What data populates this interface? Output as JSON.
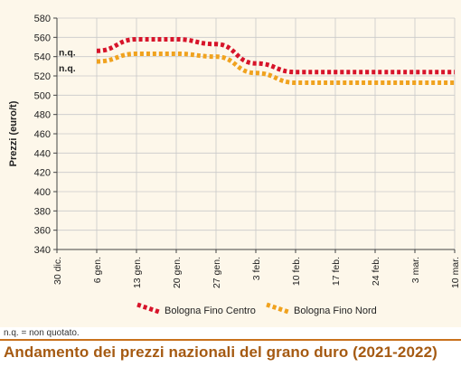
{
  "chart_data": {
    "type": "line",
    "title": "Andamento dei prezzi nazionali del grano duro (2021-2022)",
    "ylabel": "Prezzi (euro/t)",
    "ylim": [
      340,
      580
    ],
    "yticks": [
      340,
      360,
      380,
      400,
      420,
      440,
      460,
      480,
      500,
      520,
      540,
      560,
      580
    ],
    "categories": [
      "30 dic.",
      "6 gen.",
      "13 gen.",
      "20 gen.",
      "27 gen.",
      "3 feb.",
      "10 feb.",
      "17 feb.",
      "24 feb.",
      "3 mar.",
      "10 mar."
    ],
    "grid": true,
    "legend_position": "bottom",
    "series": [
      {
        "name": "Bologna Fino Centro",
        "color": "#d7142a",
        "values": [
          null,
          546,
          558,
          558,
          553,
          533,
          524,
          524,
          524,
          524,
          524
        ],
        "start_label": "n.q."
      },
      {
        "name": "Bologna Fino Nord",
        "color": "#f0a21e",
        "values": [
          null,
          535,
          543,
          543,
          540,
          523,
          513,
          513,
          513,
          513,
          513
        ],
        "start_label": "n.q."
      }
    ]
  },
  "footnote": "n.q. = non quotato.",
  "colors": {
    "title": "#a55a12",
    "chart_background": "#fdf7ea",
    "grid": "#c9c9c9",
    "axis": "#444444"
  }
}
